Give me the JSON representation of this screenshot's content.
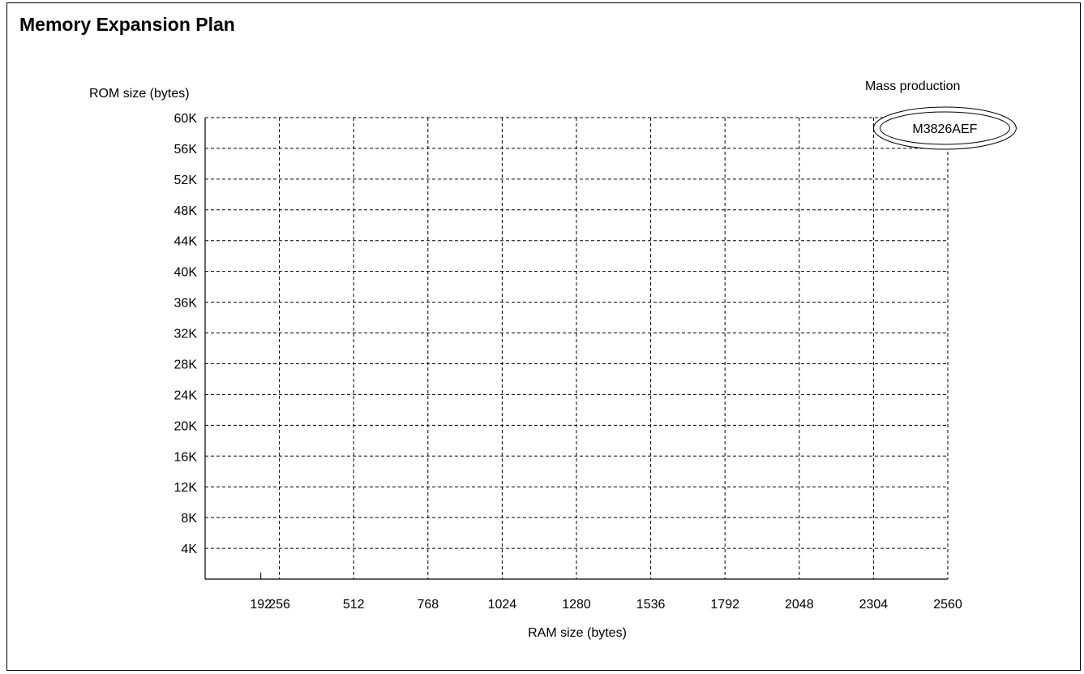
{
  "chart_data": {
    "type": "scatter",
    "title": "Memory Expansion Plan",
    "xlabel": "RAM size (bytes)",
    "ylabel": "ROM size (bytes)",
    "x_ticks": [
      {
        "value": 192,
        "label": "192"
      },
      {
        "value": 256,
        "label": "256"
      },
      {
        "value": 512,
        "label": "512"
      },
      {
        "value": 768,
        "label": "768"
      },
      {
        "value": 1024,
        "label": "1024"
      },
      {
        "value": 1280,
        "label": "1280"
      },
      {
        "value": 1536,
        "label": "1536"
      },
      {
        "value": 1792,
        "label": "1792"
      },
      {
        "value": 2048,
        "label": "2048"
      },
      {
        "value": 2304,
        "label": "2304"
      },
      {
        "value": 2560,
        "label": "2560"
      }
    ],
    "y_ticks": [
      {
        "value": 4,
        "label": "4K"
      },
      {
        "value": 8,
        "label": "8K"
      },
      {
        "value": 12,
        "label": "12K"
      },
      {
        "value": 16,
        "label": "16K"
      },
      {
        "value": 20,
        "label": "20K"
      },
      {
        "value": 24,
        "label": "24K"
      },
      {
        "value": 28,
        "label": "28K"
      },
      {
        "value": 32,
        "label": "32K"
      },
      {
        "value": 36,
        "label": "36K"
      },
      {
        "value": 40,
        "label": "40K"
      },
      {
        "value": 44,
        "label": "44K"
      },
      {
        "value": 48,
        "label": "48K"
      },
      {
        "value": 52,
        "label": "52K"
      },
      {
        "value": 56,
        "label": "56K"
      },
      {
        "value": 60,
        "label": "60K"
      }
    ],
    "xlim": [
      0,
      2560
    ],
    "ylim": [
      0,
      60
    ],
    "grid": true,
    "points": [
      {
        "label": "M3826AEF",
        "ram": 2304,
        "rom": 60
      }
    ],
    "legend": {
      "label": "Mass production",
      "placement": "top-right"
    }
  }
}
